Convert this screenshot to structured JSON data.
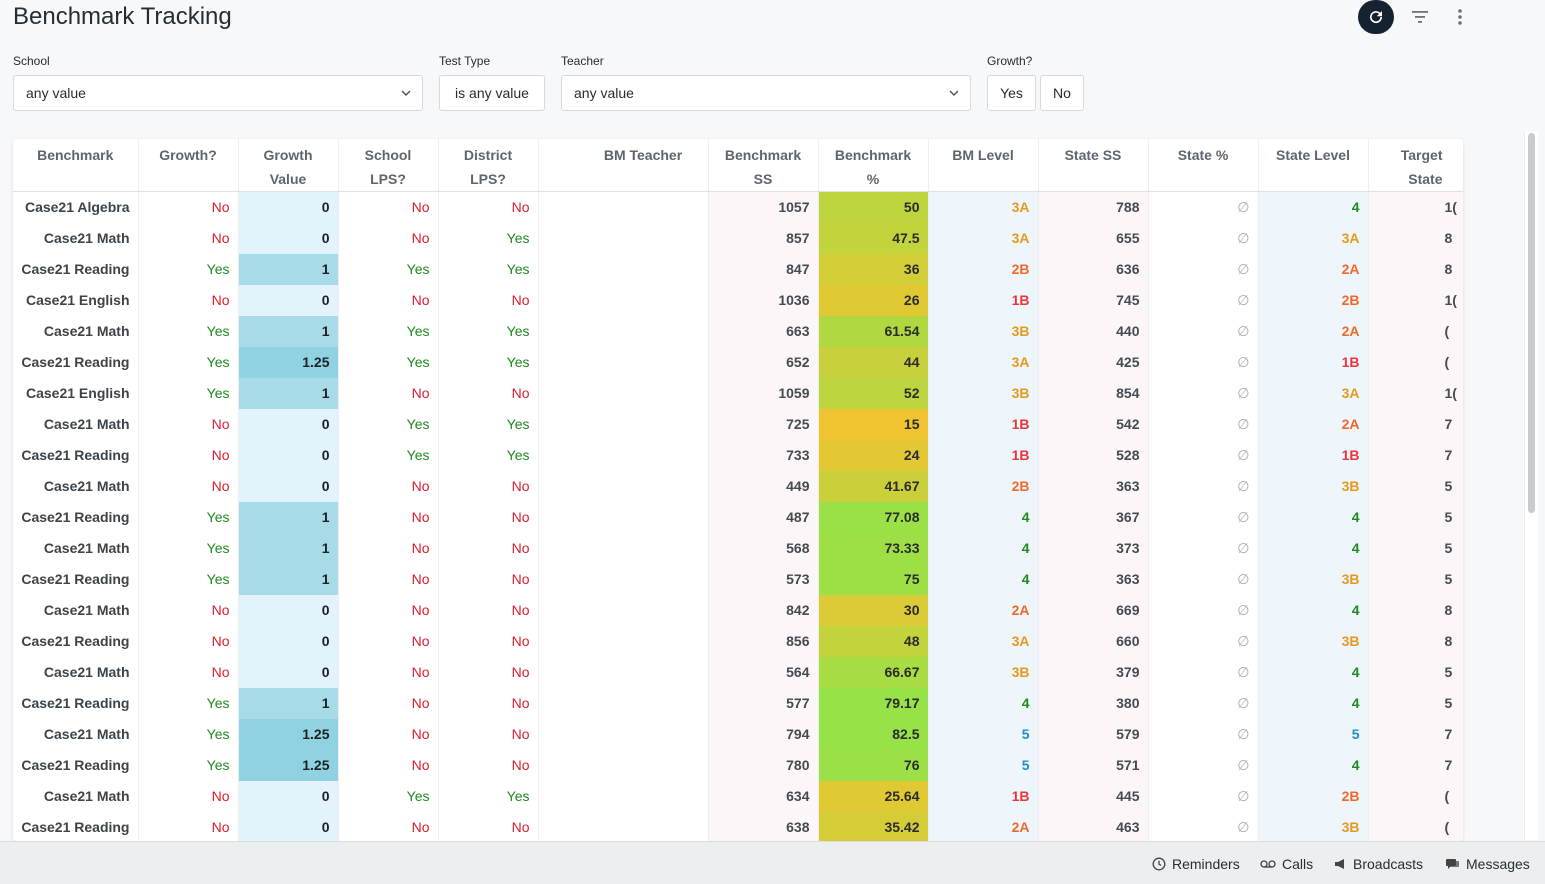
{
  "page": {
    "title": "Benchmark Tracking"
  },
  "filters": {
    "school": {
      "label": "School",
      "value": "any value"
    },
    "test_type": {
      "label": "Test Type",
      "value": "is any value"
    },
    "teacher": {
      "label": "Teacher",
      "value": "any value"
    },
    "growth": {
      "label": "Growth?",
      "yes": "Yes",
      "no": "No"
    }
  },
  "table": {
    "headers": [
      {
        "l1": "Benchmark",
        "l2": ""
      },
      {
        "l1": "Growth?",
        "l2": ""
      },
      {
        "l1": "Growth",
        "l2": "Value"
      },
      {
        "l1": "School",
        "l2": "LPS?"
      },
      {
        "l1": "District",
        "l2": "LPS?"
      },
      {
        "l1": "BM Teacher",
        "l2": ""
      },
      {
        "l1": "Benchmark",
        "l2": "SS"
      },
      {
        "l1": "Benchmark",
        "l2": "%"
      },
      {
        "l1": "BM Level",
        "l2": ""
      },
      {
        "l1": "State SS",
        "l2": ""
      },
      {
        "l1": "State %",
        "l2": ""
      },
      {
        "l1": "State Level",
        "l2": ""
      },
      {
        "l1": "Target",
        "l2": "State"
      }
    ],
    "rows": [
      [
        "Case21 Algebra",
        "No",
        "0",
        "No",
        "No",
        "",
        "1057",
        "50",
        "3A",
        "788",
        "∅",
        "4",
        "1("
      ],
      [
        "Case21 Math",
        "No",
        "0",
        "No",
        "Yes",
        "",
        "857",
        "47.5",
        "3A",
        "655",
        "∅",
        "3A",
        "8"
      ],
      [
        "Case21 Reading",
        "Yes",
        "1",
        "Yes",
        "Yes",
        "",
        "847",
        "36",
        "2B",
        "636",
        "∅",
        "2A",
        "8"
      ],
      [
        "Case21 English",
        "No",
        "0",
        "No",
        "No",
        "",
        "1036",
        "26",
        "1B",
        "745",
        "∅",
        "2B",
        "1("
      ],
      [
        "Case21 Math",
        "Yes",
        "1",
        "Yes",
        "Yes",
        "",
        "663",
        "61.54",
        "3B",
        "440",
        "∅",
        "2A",
        "("
      ],
      [
        "Case21 Reading",
        "Yes",
        "1.25",
        "Yes",
        "Yes",
        "",
        "652",
        "44",
        "3A",
        "425",
        "∅",
        "1B",
        "("
      ],
      [
        "Case21 English",
        "Yes",
        "1",
        "No",
        "No",
        "",
        "1059",
        "52",
        "3B",
        "854",
        "∅",
        "3A",
        "1("
      ],
      [
        "Case21 Math",
        "No",
        "0",
        "Yes",
        "Yes",
        "",
        "725",
        "15",
        "1B",
        "542",
        "∅",
        "2A",
        "7"
      ],
      [
        "Case21 Reading",
        "No",
        "0",
        "Yes",
        "Yes",
        "",
        "733",
        "24",
        "1B",
        "528",
        "∅",
        "1B",
        "7"
      ],
      [
        "Case21 Math",
        "No",
        "0",
        "No",
        "No",
        "",
        "449",
        "41.67",
        "2B",
        "363",
        "∅",
        "3B",
        "5"
      ],
      [
        "Case21 Reading",
        "Yes",
        "1",
        "No",
        "No",
        "",
        "487",
        "77.08",
        "4",
        "367",
        "∅",
        "4",
        "5"
      ],
      [
        "Case21 Math",
        "Yes",
        "1",
        "No",
        "No",
        "",
        "568",
        "73.33",
        "4",
        "373",
        "∅",
        "4",
        "5"
      ],
      [
        "Case21 Reading",
        "Yes",
        "1",
        "No",
        "No",
        "",
        "573",
        "75",
        "4",
        "363",
        "∅",
        "3B",
        "5"
      ],
      [
        "Case21 Math",
        "No",
        "0",
        "No",
        "No",
        "",
        "842",
        "30",
        "2A",
        "669",
        "∅",
        "4",
        "8"
      ],
      [
        "Case21 Reading",
        "No",
        "0",
        "No",
        "No",
        "",
        "856",
        "48",
        "3A",
        "660",
        "∅",
        "3B",
        "8"
      ],
      [
        "Case21 Math",
        "No",
        "0",
        "No",
        "No",
        "",
        "564",
        "66.67",
        "3B",
        "379",
        "∅",
        "4",
        "5"
      ],
      [
        "Case21 Reading",
        "Yes",
        "1",
        "No",
        "No",
        "",
        "577",
        "79.17",
        "4",
        "380",
        "∅",
        "4",
        "5"
      ],
      [
        "Case21 Math",
        "Yes",
        "1.25",
        "No",
        "No",
        "",
        "794",
        "82.5",
        "5",
        "579",
        "∅",
        "5",
        "7"
      ],
      [
        "Case21 Reading",
        "Yes",
        "1.25",
        "No",
        "No",
        "",
        "780",
        "76",
        "5",
        "571",
        "∅",
        "4",
        "7"
      ],
      [
        "Case21 Math",
        "No",
        "0",
        "Yes",
        "Yes",
        "",
        "634",
        "25.64",
        "1B",
        "445",
        "∅",
        "2B",
        "("
      ],
      [
        "Case21 Reading",
        "No",
        "0",
        "No",
        "No",
        "",
        "638",
        "35.42",
        "2A",
        "463",
        "∅",
        "3B",
        "("
      ]
    ]
  },
  "colors": {
    "growth_zero": "#e3f3fb",
    "growth_one": "#a6dbe7",
    "growth_high": "#8fd3e2",
    "level_4": "#1f8a1f",
    "level_5": "#1b8fd0",
    "level_3": "#e59a1d",
    "level_2": "#ef6a2a",
    "level_1": "#e8373a"
  },
  "footer": {
    "reminders": "Reminders",
    "calls": "Calls",
    "broadcasts": "Broadcasts",
    "messages": "Messages"
  }
}
